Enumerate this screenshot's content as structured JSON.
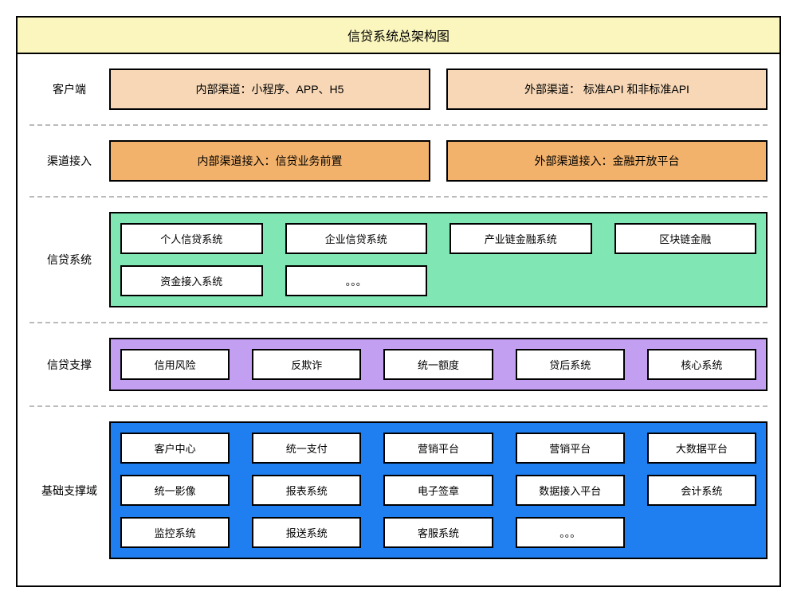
{
  "title": "信贷系统总架构图",
  "colors": {
    "title_bg": "#fbf6bd",
    "client_bg": "#f7d7b6",
    "channel_bg": "#f3b26b",
    "credit_panel_bg": "#80e6b4",
    "support_panel_bg": "#c39ff2",
    "base_panel_bg": "#1f7ef0",
    "border": "#000000",
    "dash": "#bbbbbb",
    "cell_bg": "#ffffff"
  },
  "layers": {
    "client": {
      "label": "客户端",
      "boxes": [
        "内部渠道：小程序、APP、H5",
        "外部渠道： 标准API 和非标准API"
      ]
    },
    "channel": {
      "label": "渠道接入",
      "boxes": [
        "内部渠道接入：信贷业务前置",
        "外部渠道接入：金融开放平台"
      ]
    },
    "credit": {
      "label": "信贷系统",
      "cells": [
        "个人信贷系统",
        "企业信贷系统",
        "产业链金融系统",
        "区块链金融",
        "资金接入系统",
        "。。。",
        "",
        ""
      ]
    },
    "support": {
      "label": "信贷支撑",
      "cells": [
        "信用风险",
        "反欺诈",
        "统一额度",
        "贷后系统",
        "核心系统"
      ]
    },
    "base": {
      "label": "基础支撑域",
      "cells": [
        "客户中心",
        "统一支付",
        "营销平台",
        "营销平台",
        "大数据平台",
        "统一影像",
        "报表系统",
        "电子签章",
        "数据接入平台",
        "会计系统",
        "监控系统",
        "报送系统",
        "客服系统",
        "。。。",
        ""
      ]
    }
  }
}
